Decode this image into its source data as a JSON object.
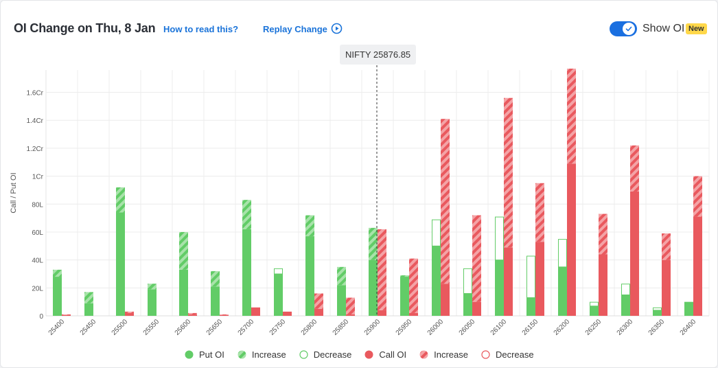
{
  "header": {
    "title": "OI Change on Thu, 8 Jan",
    "how_to_read": "How to read this?",
    "replay": "Replay Change",
    "show_oi_label": "Show OI",
    "new_badge": "New",
    "show_oi_on": true
  },
  "spot_label": "NIFTY 25876.85",
  "legend": {
    "put_oi": "Put OI",
    "put_increase": "Increase",
    "put_decrease": "Decrease",
    "call_oi": "Call OI",
    "call_increase": "Increase",
    "call_decrease": "Decrease"
  },
  "colors": {
    "put": "#62cc67",
    "put_light": "#a8e3aa",
    "call": "#e9595e",
    "call_light": "#f4a3a6",
    "accent": "#1a6fe0",
    "badge": "#ffd84a"
  },
  "chart_data": {
    "type": "bar",
    "ylabel": "Call / Put OI",
    "y_ticks": [
      "0",
      "20L",
      "40L",
      "60L",
      "80L",
      "1Cr",
      "1.2Cr",
      "1.4Cr",
      "1.6Cr"
    ],
    "ylim": [
      0,
      176
    ],
    "units": "lakh",
    "spot": 25876.85,
    "spot_position_after_strike": "25900",
    "categories": [
      "25400",
      "25450",
      "25500",
      "25550",
      "25600",
      "25650",
      "25700",
      "25750",
      "25800",
      "25850",
      "25900",
      "25950",
      "26000",
      "26050",
      "26100",
      "26150",
      "26200",
      "26250",
      "26300",
      "26350",
      "26400"
    ],
    "put": [
      {
        "base": 28,
        "change": 5
      },
      {
        "base": 9,
        "change": 8
      },
      {
        "base": 74,
        "change": 18
      },
      {
        "base": 19,
        "change": 4
      },
      {
        "base": 33,
        "change": 27
      },
      {
        "base": 21,
        "change": 11
      },
      {
        "base": 62,
        "change": 21
      },
      {
        "base": 30,
        "change": -4
      },
      {
        "base": 57,
        "change": 15
      },
      {
        "base": 22,
        "change": 13
      },
      {
        "base": 40,
        "change": 23
      },
      {
        "base": 28,
        "change": 1
      },
      {
        "base": 50,
        "change": -19
      },
      {
        "base": 16,
        "change": -18
      },
      {
        "base": 40,
        "change": -31
      },
      {
        "base": 13,
        "change": -30
      },
      {
        "base": 35,
        "change": -20
      },
      {
        "base": 7,
        "change": -3
      },
      {
        "base": 15,
        "change": -8
      },
      {
        "base": 4,
        "change": -2
      },
      {
        "base": 10,
        "change": 0
      }
    ],
    "call": [
      {
        "base": 0.5,
        "change": 0.5
      },
      {
        "base": 0,
        "change": 0
      },
      {
        "base": 2,
        "change": 1
      },
      {
        "base": 0,
        "change": 0
      },
      {
        "base": 1,
        "change": 1
      },
      {
        "base": 0.5,
        "change": 0.5
      },
      {
        "base": 6,
        "change": 0
      },
      {
        "base": 3,
        "change": 0
      },
      {
        "base": 5,
        "change": 11
      },
      {
        "base": 1,
        "change": 12
      },
      {
        "base": 4,
        "change": 58
      },
      {
        "base": 2,
        "change": 39
      },
      {
        "base": 23,
        "change": 118
      },
      {
        "base": 10,
        "change": 62
      },
      {
        "base": 49,
        "change": 107
      },
      {
        "base": 53,
        "change": 42
      },
      {
        "base": 109,
        "change": 68
      },
      {
        "base": 44,
        "change": 29
      },
      {
        "base": 89,
        "change": 33
      },
      {
        "base": 40,
        "change": 19
      },
      {
        "base": 71,
        "change": 29
      }
    ]
  }
}
